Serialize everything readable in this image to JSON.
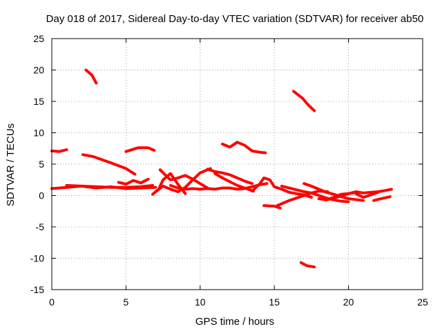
{
  "chart_data": {
    "type": "scatter",
    "title": "Day 018 of 2017, Sidereal Day-to-day VTEC variation (SDTVAR) for receiver ab50",
    "xlabel": "GPS time / hours",
    "ylabel": "SDTVAR / TECUs",
    "xlim": [
      0,
      25
    ],
    "ylim": [
      -15,
      25
    ],
    "xticks": [
      0,
      5,
      10,
      15,
      20,
      25
    ],
    "yticks": [
      -15,
      -10,
      -5,
      0,
      5,
      10,
      15,
      20,
      25
    ],
    "grid": true,
    "color": "#ff0000",
    "series": [
      {
        "name": "s1",
        "x": [
          0.0,
          0.5,
          1.0
        ],
        "y": [
          7.1,
          7.0,
          7.3
        ]
      },
      {
        "name": "s2",
        "x": [
          2.3,
          2.7,
          3.0
        ],
        "y": [
          20.0,
          19.2,
          17.9
        ]
      },
      {
        "name": "s3",
        "x": [
          2.1,
          2.8,
          4.0,
          5.0,
          5.6
        ],
        "y": [
          6.5,
          6.2,
          5.2,
          4.3,
          3.4
        ]
      },
      {
        "name": "s4",
        "x": [
          5.0,
          5.8,
          6.5,
          6.9
        ],
        "y": [
          7.0,
          7.6,
          7.6,
          7.2
        ]
      },
      {
        "name": "s5",
        "x": [
          11.5,
          12.0,
          12.5,
          13.0,
          13.5,
          14.0,
          14.4
        ],
        "y": [
          8.2,
          7.7,
          8.5,
          8.0,
          7.1,
          6.9,
          6.8
        ]
      },
      {
        "name": "s6",
        "x": [
          16.3,
          16.9,
          17.3,
          17.7
        ],
        "y": [
          16.6,
          15.5,
          14.4,
          13.5
        ]
      },
      {
        "name": "s7",
        "x": [
          16.8,
          17.2,
          17.7
        ],
        "y": [
          -10.7,
          -11.2,
          -11.4
        ]
      },
      {
        "name": "s8",
        "x": [
          0.0,
          1.0,
          2.0,
          3.0,
          4.0,
          5.0,
          6.0,
          6.8
        ],
        "y": [
          1.1,
          1.3,
          1.5,
          1.4,
          1.3,
          1.3,
          1.4,
          1.6
        ]
      },
      {
        "name": "s9",
        "x": [
          1.0,
          2.0,
          3.0,
          4.0,
          5.0,
          6.0,
          7.0
        ],
        "y": [
          1.6,
          1.5,
          1.2,
          1.4,
          1.1,
          1.2,
          1.3
        ]
      },
      {
        "name": "s10",
        "x": [
          4.5,
          5.0,
          5.5,
          6.0,
          6.5
        ],
        "y": [
          2.1,
          1.8,
          2.4,
          2.0,
          2.6
        ]
      },
      {
        "name": "s11",
        "x": [
          6.8,
          7.2,
          7.5,
          8.0,
          8.5,
          9.0
        ],
        "y": [
          0.2,
          1.0,
          2.5,
          3.5,
          1.8,
          0.3
        ]
      },
      {
        "name": "s12",
        "x": [
          7.0,
          7.5,
          8.0,
          8.5,
          9.0,
          9.5,
          10.0,
          10.7
        ],
        "y": [
          0.6,
          1.5,
          1.0,
          0.6,
          1.3,
          2.5,
          3.6,
          4.3
        ]
      },
      {
        "name": "s13",
        "x": [
          7.3,
          7.6,
          8.0,
          8.5,
          9.0,
          9.5,
          10.5
        ],
        "y": [
          4.1,
          3.4,
          2.5,
          2.8,
          3.2,
          2.6,
          1.2
        ]
      },
      {
        "name": "s14",
        "x": [
          8.0,
          8.5,
          9.0,
          9.5,
          10.0,
          10.5,
          11.0,
          11.5,
          12.0,
          12.5,
          13.0,
          13.5,
          14.0,
          14.5
        ],
        "y": [
          1.6,
          1.2,
          1.0,
          1.1,
          1.0,
          1.1,
          1.0,
          1.2,
          1.2,
          1.0,
          1.1,
          1.4,
          1.7,
          1.9
        ]
      },
      {
        "name": "s15",
        "x": [
          10.5,
          11.0,
          11.5,
          12.0,
          12.5,
          13.0,
          13.5
        ],
        "y": [
          4.2,
          3.8,
          3.6,
          3.3,
          2.8,
          2.3,
          1.9
        ]
      },
      {
        "name": "s16",
        "x": [
          11.0,
          11.5,
          12.0,
          12.5,
          13.0,
          13.6
        ],
        "y": [
          3.5,
          2.8,
          2.2,
          1.6,
          1.2,
          0.7
        ]
      },
      {
        "name": "s17",
        "x": [
          13.5,
          14.0,
          14.3,
          14.7,
          15.0,
          15.5,
          16.0,
          16.5,
          17.0,
          17.5
        ],
        "y": [
          0.7,
          1.8,
          2.8,
          2.5,
          1.4,
          1.0,
          0.5,
          0.3,
          0.1,
          -0.3
        ]
      },
      {
        "name": "s18",
        "x": [
          14.3,
          15.0,
          15.4
        ],
        "y": [
          -1.6,
          -1.7,
          -2.0
        ]
      },
      {
        "name": "s19",
        "x": [
          15.2,
          16.0,
          17.0,
          17.5,
          18.0,
          18.6
        ],
        "y": [
          -1.6,
          -0.8,
          0.0,
          0.4,
          0.7,
          0.6
        ]
      },
      {
        "name": "s20",
        "x": [
          15.5,
          16.0,
          16.5,
          17.0,
          17.5,
          18.0,
          18.5,
          19.0,
          19.5,
          20.0
        ],
        "y": [
          1.5,
          1.2,
          0.9,
          0.6,
          0.4,
          0.0,
          -0.4,
          -0.7,
          -0.9,
          -1.0
        ]
      },
      {
        "name": "s21",
        "x": [
          17.0,
          17.5,
          18.0,
          18.5,
          19.0,
          19.5,
          20.0,
          21.0
        ],
        "y": [
          1.9,
          1.5,
          1.0,
          0.5,
          0.2,
          -0.2,
          -0.5,
          -0.8
        ]
      },
      {
        "name": "s22",
        "x": [
          18.0,
          18.5,
          19.0,
          19.5,
          20.0,
          20.5,
          21.0,
          21.5,
          22.0,
          22.5,
          22.9
        ],
        "y": [
          -0.5,
          -0.7,
          -0.3,
          0.2,
          0.3,
          0.6,
          0.4,
          0.5,
          0.6,
          0.8,
          1.0
        ]
      },
      {
        "name": "s23",
        "x": [
          18.5,
          19.0,
          19.5,
          20.0,
          20.5
        ],
        "y": [
          -0.7,
          -0.4,
          -0.1,
          0.3,
          0.5
        ]
      },
      {
        "name": "s24",
        "x": [
          20.5,
          21.0,
          21.5,
          22.0
        ],
        "y": [
          0.3,
          -0.3,
          0.1,
          0.5
        ]
      },
      {
        "name": "s25",
        "x": [
          21.7,
          22.2,
          22.8
        ],
        "y": [
          -0.8,
          -0.5,
          -0.2
        ]
      }
    ]
  }
}
